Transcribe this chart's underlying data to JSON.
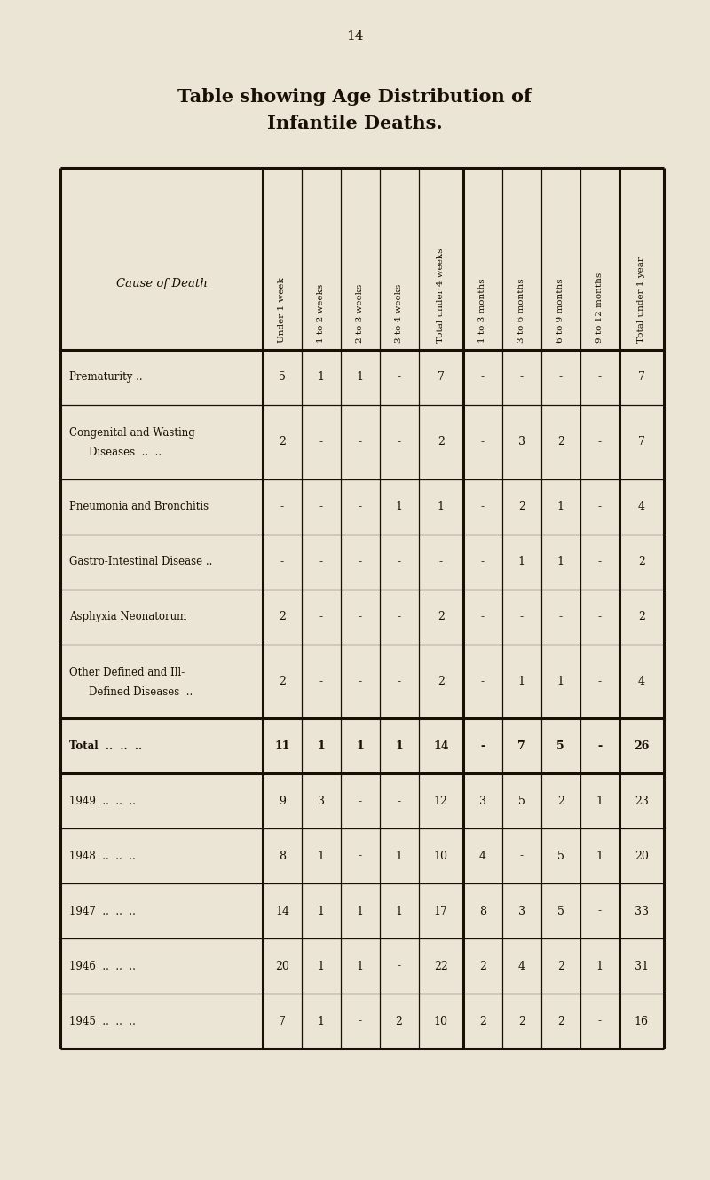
{
  "page_number": "14",
  "title_line1": "Table showing Age Distribution of",
  "title_line2": "Infantile Deaths.",
  "bg_color": "#EAE5D5",
  "text_color": "#1a0f05",
  "col_headers": [
    "Under 1 week",
    "1 to 2 weeks",
    "2 to 3 weeks",
    "3 to 4 weeks",
    "Total under 4 weeks",
    "1 to 3 months",
    "3 to 6 months",
    "6 to 9 months",
    "9 to 12 months",
    "Total under 1 year"
  ],
  "cause_col_header": "Cause of Death",
  "rows": [
    {
      "label": "Prematurity ..",
      "label_dots": "..",
      "label2": null,
      "values": [
        "5",
        "1",
        "1",
        "-",
        "7",
        "-",
        "-",
        "-",
        "-",
        "7"
      ],
      "is_total": false,
      "bold": false
    },
    {
      "label": "Congenital and Wasting",
      "label_dots": null,
      "label2": "Diseases  ..  ..",
      "values": [
        "2",
        "-",
        "-",
        "-",
        "2",
        "-",
        "3",
        "2",
        "-",
        "7"
      ],
      "is_total": false,
      "bold": false
    },
    {
      "label": "Pneumonia and Bronchitis",
      "label_dots": null,
      "label2": null,
      "values": [
        "-",
        "-",
        "-",
        "1",
        "1",
        "-",
        "2",
        "1",
        "-",
        "4"
      ],
      "is_total": false,
      "bold": false
    },
    {
      "label": "Gastro-Intestinal Disease ..",
      "label_dots": null,
      "label2": null,
      "values": [
        "-",
        "-",
        "-",
        "-",
        "-",
        "-",
        "1",
        "1",
        "-",
        "2"
      ],
      "is_total": false,
      "bold": false
    },
    {
      "label": "Asphyxia Neonatorum",
      "label_dots": "..",
      "label2": null,
      "values": [
        "2",
        "-",
        "-",
        "-",
        "2",
        "-",
        "-",
        "-",
        "-",
        "2"
      ],
      "is_total": false,
      "bold": false
    },
    {
      "label": "Other Defined and Ill-",
      "label_dots": null,
      "label2": "Defined Diseases  ..",
      "values": [
        "2",
        "-",
        "-",
        "-",
        "2",
        "-",
        "1",
        "1",
        "-",
        "4"
      ],
      "is_total": false,
      "bold": false
    },
    {
      "label": "Total  ..  ..  ..",
      "label_dots": null,
      "label2": null,
      "values": [
        "11",
        "1",
        "1",
        "1",
        "14",
        "-",
        "7",
        "5",
        "-",
        "26"
      ],
      "is_total": true,
      "bold": true
    },
    {
      "label": "1949  ..  ..  ..",
      "label_dots": null,
      "label2": null,
      "values": [
        "9",
        "3",
        "-",
        "-",
        "12",
        "3",
        "5",
        "2",
        "1",
        "23"
      ],
      "is_total": false,
      "bold": false
    },
    {
      "label": "1948  ..  ..  ..",
      "label_dots": null,
      "label2": null,
      "values": [
        "8",
        "1",
        "-",
        "1",
        "10",
        "4",
        "-",
        "5",
        "1",
        "20"
      ],
      "is_total": false,
      "bold": false
    },
    {
      "label": "1947  ..  ..  ..",
      "label_dots": null,
      "label2": null,
      "values": [
        "14",
        "1",
        "1",
        "1",
        "17",
        "8",
        "3",
        "5",
        "-",
        "33"
      ],
      "is_total": false,
      "bold": false
    },
    {
      "label": "1946  ..  ..  ..",
      "label_dots": null,
      "label2": null,
      "values": [
        "20",
        "1",
        "1",
        "-",
        "22",
        "2",
        "4",
        "2",
        "1",
        "31"
      ],
      "is_total": false,
      "bold": false
    },
    {
      "label": "1945  ..  ..  ..",
      "label_dots": null,
      "label2": null,
      "values": [
        "7",
        "1",
        "-",
        "2",
        "10",
        "2",
        "2",
        "2",
        "-",
        "16"
      ],
      "is_total": false,
      "bold": false
    }
  ]
}
